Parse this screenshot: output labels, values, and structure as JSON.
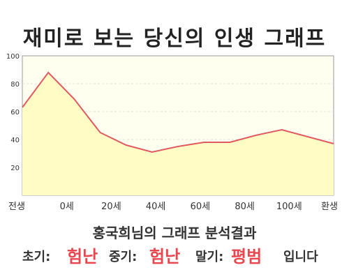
{
  "title": "재미로 보는 당신의 인생 그래프",
  "chart_data": {
    "type": "area",
    "title": "재미로 보는 당신의 인생 그래프",
    "xlabel": "",
    "ylabel": "",
    "x_tick_labels": [
      "전생",
      "0세",
      "20세",
      "40세",
      "60세",
      "80세",
      "100세",
      "환생"
    ],
    "y_ticks": [
      20,
      40,
      60,
      80,
      100
    ],
    "ylim": [
      0,
      100
    ],
    "grid": true,
    "values": [
      63,
      88,
      69,
      45,
      36,
      31,
      35,
      38,
      38,
      43,
      47,
      42,
      37
    ],
    "line_color": "#e05a60",
    "fill_color": "#fffcc6",
    "plot_background": "#fffff0"
  },
  "result": {
    "subtitle": "홍국희님의 그래프 분석결과",
    "early_label": "초기:",
    "early_value": "험난",
    "mid_label": "중기:",
    "mid_value": "험난",
    "late_label": "말기:",
    "late_value": "평범",
    "suffix": "입니다",
    "highlight_color": "#e8474f"
  }
}
